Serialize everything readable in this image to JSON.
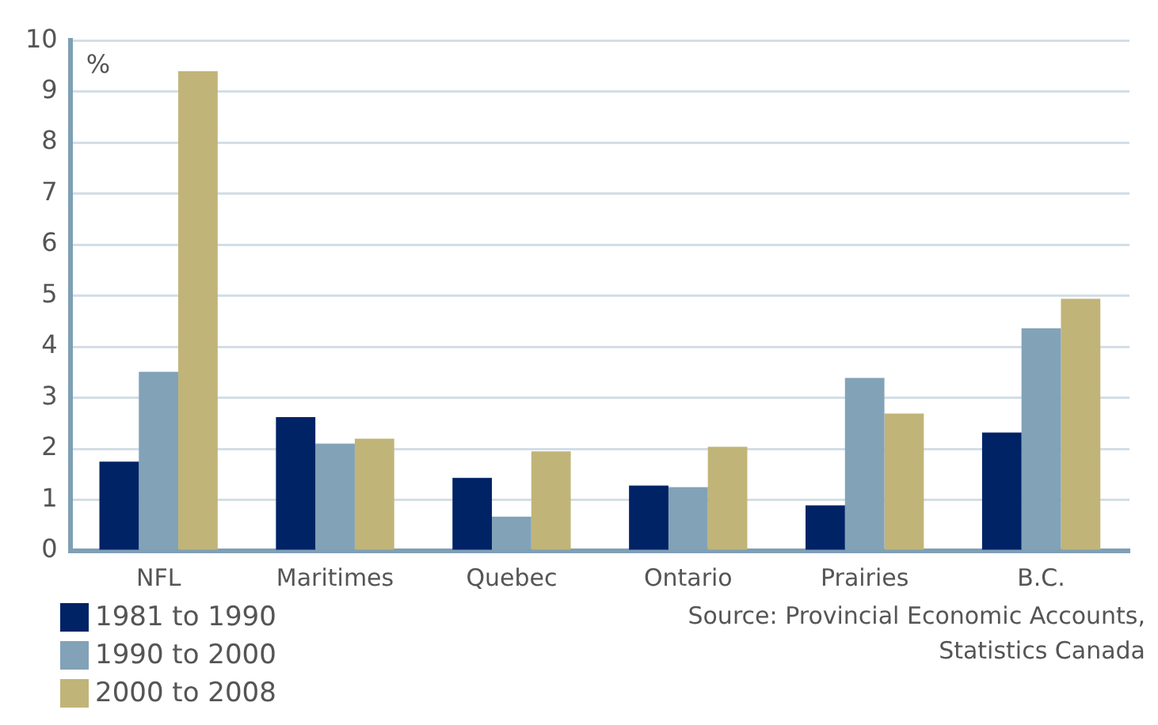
{
  "chart_data": {
    "type": "bar",
    "ylabel": "%",
    "categories": [
      "NFL",
      "Maritimes",
      "Quebec",
      "Ontario",
      "Prairies",
      "B.C."
    ],
    "series": [
      {
        "name": "1981 to 1990",
        "color": "#002366",
        "values": [
          1.75,
          2.62,
          1.43,
          1.28,
          0.89,
          2.32
        ]
      },
      {
        "name": "1990 to 2000",
        "color": "#82a2b7",
        "values": [
          3.51,
          2.1,
          0.67,
          1.25,
          3.39,
          4.36
        ]
      },
      {
        "name": "2000 to 2008",
        "color": "#c0b478",
        "values": [
          9.4,
          2.2,
          1.95,
          2.04,
          2.69,
          4.94
        ]
      }
    ],
    "ylim": [
      0,
      10
    ],
    "yticks": [
      0,
      1,
      2,
      3,
      4,
      5,
      6,
      7,
      8,
      9,
      10
    ],
    "grid": "y",
    "legend": "bottom left",
    "annotations": [
      "Source: Provincial Economic Accounts,\nStatistics Canada"
    ]
  }
}
